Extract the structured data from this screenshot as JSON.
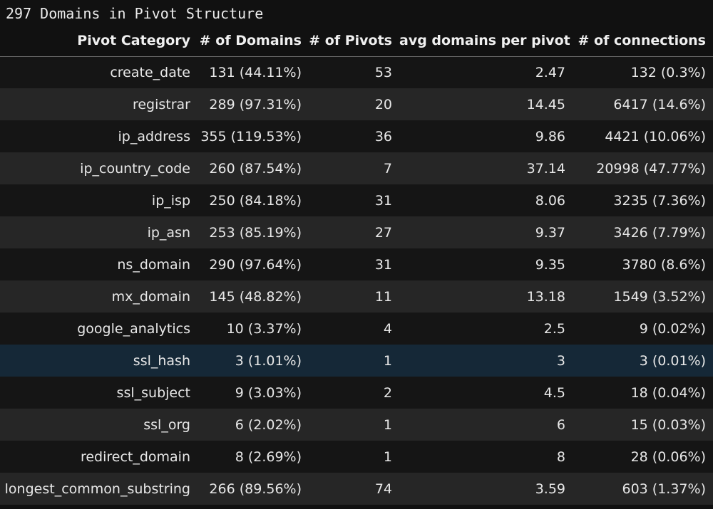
{
  "caption": "297 Domains in Pivot Structure",
  "table": {
    "headers": [
      "Pivot Category",
      "# of Domains",
      "# of Pivots",
      "avg domains per pivot",
      "# of connections"
    ],
    "highlighted_row": 9,
    "rows": [
      [
        "create_date",
        "131 (44.11%)",
        "53",
        "2.47",
        "132 (0.3%)"
      ],
      [
        "registrar",
        "289 (97.31%)",
        "20",
        "14.45",
        "6417 (14.6%)"
      ],
      [
        "ip_address",
        "355 (119.53%)",
        "36",
        "9.86",
        "4421 (10.06%)"
      ],
      [
        "ip_country_code",
        "260 (87.54%)",
        "7",
        "37.14",
        "20998 (47.77%)"
      ],
      [
        "ip_isp",
        "250 (84.18%)",
        "31",
        "8.06",
        "3235 (7.36%)"
      ],
      [
        "ip_asn",
        "253 (85.19%)",
        "27",
        "9.37",
        "3426 (7.79%)"
      ],
      [
        "ns_domain",
        "290 (97.64%)",
        "31",
        "9.35",
        "3780 (8.6%)"
      ],
      [
        "mx_domain",
        "145 (48.82%)",
        "11",
        "13.18",
        "1549 (3.52%)"
      ],
      [
        "google_analytics",
        "10 (3.37%)",
        "4",
        "2.5",
        "9 (0.02%)"
      ],
      [
        "ssl_hash",
        "3 (1.01%)",
        "1",
        "3",
        "3 (0.01%)"
      ],
      [
        "ssl_subject",
        "9 (3.03%)",
        "2",
        "4.5",
        "18 (0.04%)"
      ],
      [
        "ssl_org",
        "6 (2.02%)",
        "1",
        "6",
        "15 (0.03%)"
      ],
      [
        "redirect_domain",
        "8 (2.69%)",
        "1",
        "8",
        "28 (0.06%)"
      ],
      [
        "longest_common_substring",
        "266 (89.56%)",
        "74",
        "3.59",
        "603 (1.37%)"
      ]
    ]
  },
  "colors": {
    "background": "#111111",
    "row_odd": "#151515",
    "row_even": "#262626",
    "row_highlight": "#152837",
    "text": "#e8e8e8"
  }
}
